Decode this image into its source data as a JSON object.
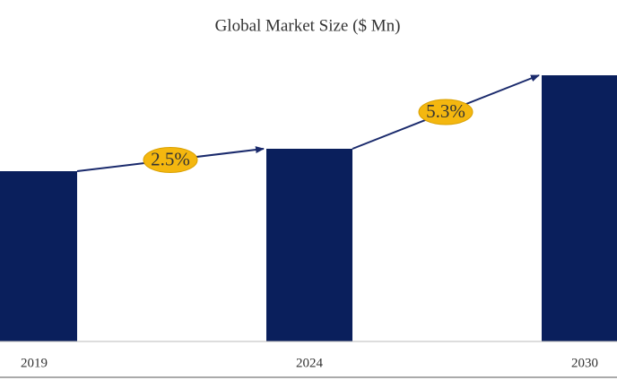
{
  "chart_data": {
    "type": "bar",
    "title": "Global Market Size ($ Mn)",
    "categories": [
      "2019",
      "2024",
      "2030"
    ],
    "values": [
      190,
      215,
      297
    ],
    "color": "#0a1f5c",
    "annotations": [
      "2.5%",
      "5.3%"
    ],
    "annotation_color": "#f4b70f"
  }
}
